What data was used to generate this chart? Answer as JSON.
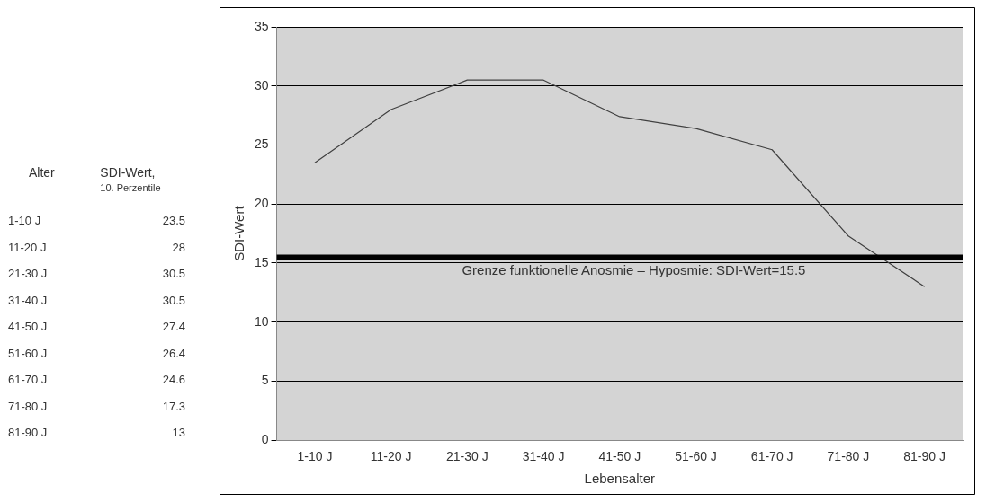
{
  "chart_data": [
    {
      "type": "other",
      "annotations": [
        "Alter",
        "SDI-Wert,",
        "10. Perzentile",
        "1-10 J",
        "23.5",
        "11-20 J",
        "28",
        "21-30 J",
        "30.5",
        "31-40 J",
        "30.5",
        "41-50 J",
        "27.4",
        "51-60 J",
        "26.4",
        "61-70 J",
        "24.6",
        "71-80 J",
        "17.3",
        "81-90 J",
        "13"
      ]
    },
    {
      "type": "line",
      "xlabel": "Lebensalter",
      "ylabel": "SDI-Wert",
      "categories": [
        "1-10 J",
        "11-20 J",
        "21-30 J",
        "31-40 J",
        "41-50 J",
        "51-60 J",
        "61-70 J",
        "71-80 J",
        "81-90 J"
      ],
      "values": [
        23.5,
        28,
        30.5,
        30.5,
        27.4,
        26.4,
        24.6,
        17.3,
        13
      ],
      "color": "#404040",
      "ylim": [
        0,
        35
      ],
      "yticks": [
        0,
        5,
        10,
        15,
        20,
        25,
        30,
        35
      ],
      "grid": "y",
      "legend": false,
      "marker": "none",
      "line_style": "solid",
      "ref_lines": [
        {
          "axis": "y",
          "value": 15.5,
          "label": "Grenze funktionelle Anosmie – Hyposmie: SDI-Wert=15.5",
          "color": "#000000"
        }
      ]
    }
  ]
}
